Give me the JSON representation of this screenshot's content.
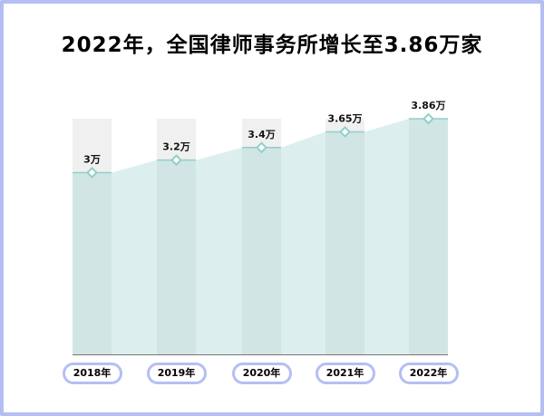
{
  "title": "2022年，全国律师事务所增长至3.86万家",
  "chart_data": {
    "type": "bar",
    "title": "2022年，全国律师事务所增长至3.86万家",
    "categories": [
      "2018年",
      "2019年",
      "2020年",
      "2021年",
      "2022年"
    ],
    "values": [
      3,
      3.2,
      3.4,
      3.65,
      3.86
    ],
    "data_labels": [
      "3万",
      "3.2万",
      "3.4万",
      "3.65万",
      "3.86万"
    ],
    "unit": "万",
    "ylim": [
      0.1,
      3.86
    ],
    "grid": false,
    "colors": {
      "bar": "#d1e5e4",
      "bar_bg": "#f0f0f0",
      "area": "#dcefee",
      "line": "#8fd0c8",
      "frame": "#b5bef4"
    }
  }
}
